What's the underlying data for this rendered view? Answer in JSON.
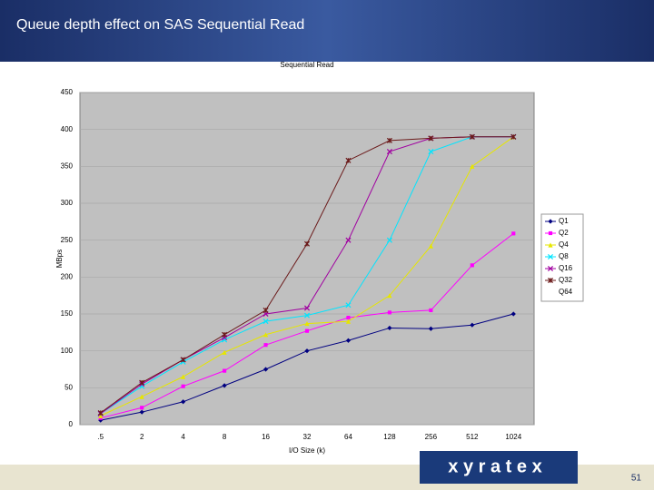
{
  "slide_title": "Queue depth effect on SAS Sequential Read",
  "page_number": "51",
  "logo": "x y r a t e x",
  "chart_data": {
    "type": "line",
    "title": "Sequential Read",
    "x_label": "I/O Size (k)",
    "y_label": "MBps",
    "categories": [
      ".5",
      "2",
      "4",
      "8",
      "16",
      "32",
      "64",
      "128",
      "256",
      "512",
      "1024"
    ],
    "series": [
      {
        "name": "Q1",
        "color": "#000080",
        "values": [
          6,
          17,
          31,
          53,
          75,
          100,
          114,
          131,
          130,
          135,
          150
        ]
      },
      {
        "name": "Q2",
        "color": "#ff00ff",
        "values": [
          9,
          23,
          52,
          73,
          108,
          127,
          145,
          152,
          155,
          216,
          259
        ]
      },
      {
        "name": "Q4",
        "color": "#e6e600",
        "values": [
          12,
          38,
          65,
          98,
          122,
          137,
          140,
          175,
          242,
          350,
          390
        ]
      },
      {
        "name": "Q8",
        "color": "#00e5ff",
        "values": [
          15,
          52,
          85,
          115,
          140,
          148,
          162,
          250,
          370,
          390,
          390
        ]
      },
      {
        "name": "Q16",
        "color": "#a000a0",
        "values": [
          15,
          55,
          88,
          118,
          150,
          158,
          250,
          370,
          388,
          390,
          390
        ]
      },
      {
        "name": "Q32",
        "color": "#6b1a1a",
        "values": [
          16,
          57,
          88,
          122,
          155,
          245,
          358,
          385,
          388,
          390,
          390
        ]
      },
      {
        "name": "Q64",
        "values": [
          null,
          null,
          null,
          null,
          null,
          null,
          null,
          null,
          null,
          null,
          null
        ]
      }
    ],
    "ylim": [
      0,
      450
    ],
    "yticks": [
      0,
      50,
      100,
      150,
      200,
      250,
      300,
      350,
      400,
      450
    ],
    "grid": true
  }
}
